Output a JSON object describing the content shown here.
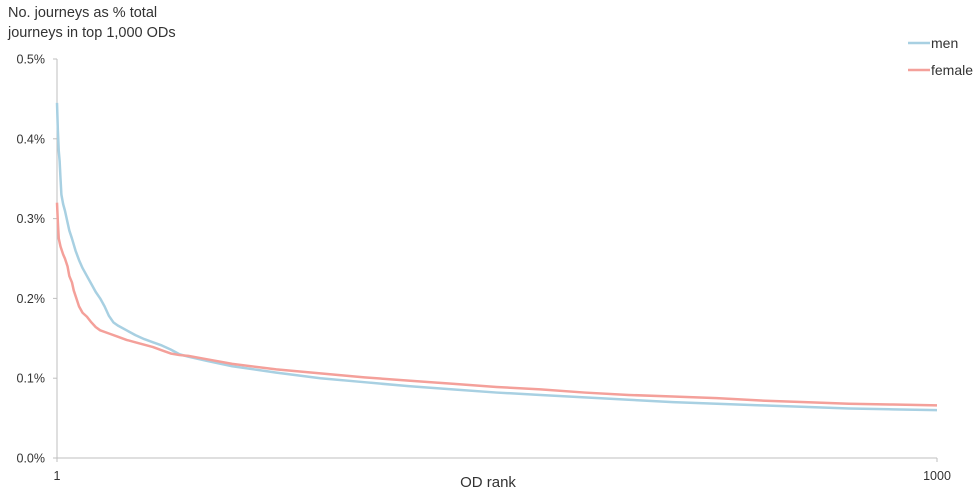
{
  "chart_data": {
    "type": "line",
    "ylabel_lines": [
      "No. journeys as % total",
      "journeys in top 1,000 ODs"
    ],
    "xlabel": "OD rank",
    "x_ticks": [
      "1",
      "1000"
    ],
    "y_ticks": [
      "0.0%",
      "0.1%",
      "0.2%",
      "0.3%",
      "0.4%",
      "0.5%"
    ],
    "xlim": [
      1,
      1000
    ],
    "ylim": [
      0,
      0.5
    ],
    "grid": false,
    "legend_position": "top-right",
    "series": [
      {
        "name": "men",
        "color": "#a8d0e2",
        "points": [
          [
            1,
            0.445
          ],
          [
            2,
            0.41
          ],
          [
            3,
            0.385
          ],
          [
            4,
            0.372
          ],
          [
            5,
            0.35
          ],
          [
            6,
            0.33
          ],
          [
            8,
            0.318
          ],
          [
            10,
            0.31
          ],
          [
            12,
            0.3
          ],
          [
            15,
            0.285
          ],
          [
            18,
            0.275
          ],
          [
            22,
            0.26
          ],
          [
            26,
            0.248
          ],
          [
            30,
            0.238
          ],
          [
            35,
            0.228
          ],
          [
            40,
            0.218
          ],
          [
            45,
            0.208
          ],
          [
            50,
            0.2
          ],
          [
            55,
            0.19
          ],
          [
            60,
            0.178
          ],
          [
            65,
            0.17
          ],
          [
            70,
            0.166
          ],
          [
            80,
            0.16
          ],
          [
            90,
            0.154
          ],
          [
            100,
            0.149
          ],
          [
            110,
            0.145
          ],
          [
            120,
            0.141
          ],
          [
            130,
            0.136
          ],
          [
            140,
            0.13
          ],
          [
            150,
            0.127
          ],
          [
            170,
            0.122
          ],
          [
            200,
            0.115
          ],
          [
            250,
            0.107
          ],
          [
            300,
            0.1
          ],
          [
            350,
            0.095
          ],
          [
            400,
            0.09
          ],
          [
            450,
            0.086
          ],
          [
            500,
            0.082
          ],
          [
            550,
            0.079
          ],
          [
            600,
            0.076
          ],
          [
            650,
            0.073
          ],
          [
            700,
            0.07
          ],
          [
            750,
            0.068
          ],
          [
            800,
            0.066
          ],
          [
            850,
            0.064
          ],
          [
            900,
            0.062
          ],
          [
            950,
            0.061
          ],
          [
            1000,
            0.06
          ]
        ]
      },
      {
        "name": "female",
        "color": "#f4a09a",
        "points": [
          [
            1,
            0.32
          ],
          [
            2,
            0.295
          ],
          [
            3,
            0.275
          ],
          [
            5,
            0.265
          ],
          [
            8,
            0.255
          ],
          [
            10,
            0.25
          ],
          [
            13,
            0.24
          ],
          [
            15,
            0.228
          ],
          [
            18,
            0.22
          ],
          [
            20,
            0.21
          ],
          [
            23,
            0.2
          ],
          [
            26,
            0.19
          ],
          [
            30,
            0.182
          ],
          [
            35,
            0.177
          ],
          [
            40,
            0.17
          ],
          [
            45,
            0.164
          ],
          [
            50,
            0.16
          ],
          [
            60,
            0.156
          ],
          [
            70,
            0.152
          ],
          [
            80,
            0.148
          ],
          [
            90,
            0.145
          ],
          [
            100,
            0.142
          ],
          [
            110,
            0.139
          ],
          [
            120,
            0.135
          ],
          [
            130,
            0.131
          ],
          [
            140,
            0.129
          ],
          [
            150,
            0.128
          ],
          [
            170,
            0.124
          ],
          [
            200,
            0.118
          ],
          [
            250,
            0.111
          ],
          [
            300,
            0.106
          ],
          [
            350,
            0.101
          ],
          [
            400,
            0.097
          ],
          [
            450,
            0.093
          ],
          [
            500,
            0.089
          ],
          [
            550,
            0.086
          ],
          [
            600,
            0.082
          ],
          [
            650,
            0.079
          ],
          [
            700,
            0.077
          ],
          [
            750,
            0.075
          ],
          [
            800,
            0.072
          ],
          [
            850,
            0.07
          ],
          [
            900,
            0.068
          ],
          [
            950,
            0.067
          ],
          [
            1000,
            0.066
          ]
        ]
      }
    ]
  }
}
